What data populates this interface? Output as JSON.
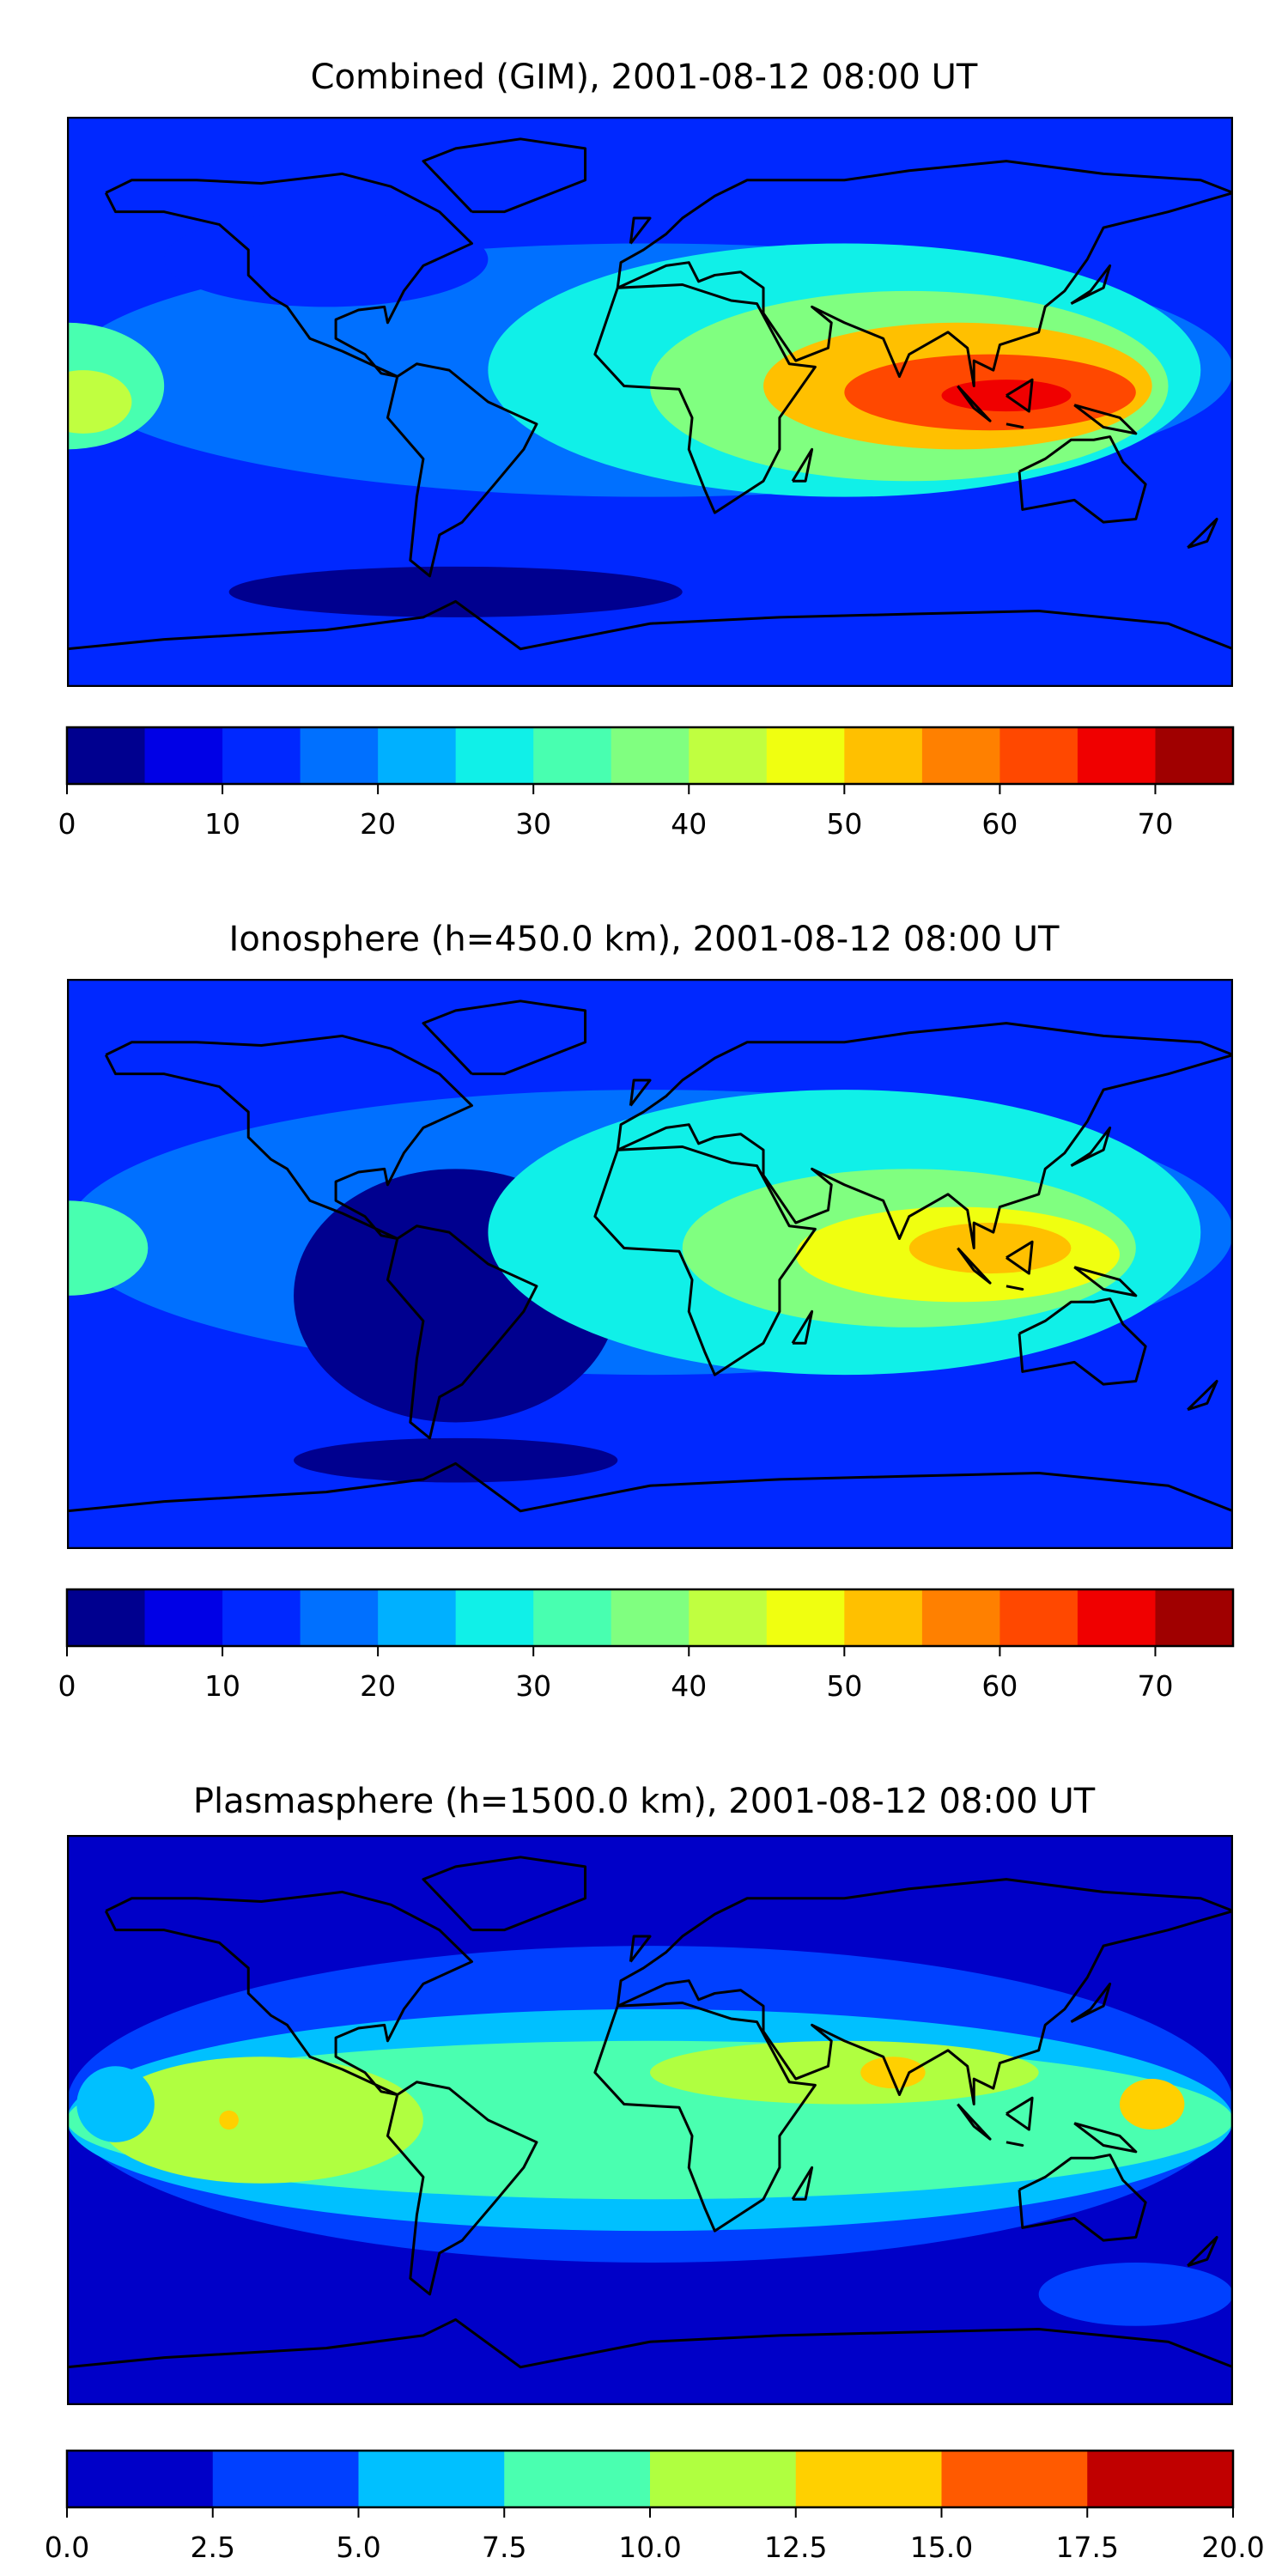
{
  "chart_data": [
    {
      "type": "heatmap",
      "title": "Combined (GIM), 2001-08-12 08:00 UT",
      "xlim": [
        -180,
        180
      ],
      "ylim": [
        -90,
        90
      ],
      "colorbar": {
        "bounds": [
          0,
          5,
          10,
          15,
          20,
          25,
          30,
          35,
          40,
          45,
          50,
          55,
          60,
          65,
          70,
          75
        ],
        "colors": [
          "#00008f",
          "#0000e6",
          "#0028ff",
          "#0070ff",
          "#00b0ff",
          "#10f0e8",
          "#48ffb0",
          "#80ff80",
          "#c0ff40",
          "#f0ff10",
          "#ffc000",
          "#ff8000",
          "#ff4800",
          "#f00000",
          "#a00000"
        ],
        "ticks": [
          0,
          10,
          20,
          30,
          40,
          50,
          60,
          70
        ],
        "tick_labels": [
          "0",
          "10",
          "20",
          "30",
          "40",
          "50",
          "60",
          "70"
        ]
      },
      "background_value": 12,
      "regions": [
        {
          "lon": 0,
          "lat": 10,
          "rx": 180,
          "ry": 40,
          "v": 17
        },
        {
          "lon": -100,
          "lat": 45,
          "rx": 50,
          "ry": 15,
          "v": 12
        },
        {
          "lon": 60,
          "lat": 10,
          "rx": 110,
          "ry": 40,
          "v": 27
        },
        {
          "lon": 80,
          "lat": 5,
          "rx": 80,
          "ry": 30,
          "v": 37
        },
        {
          "lon": 95,
          "lat": 5,
          "rx": 60,
          "ry": 20,
          "v": 52
        },
        {
          "lon": 105,
          "lat": 3,
          "rx": 45,
          "ry": 12,
          "v": 62
        },
        {
          "lon": 110,
          "lat": 2,
          "rx": 20,
          "ry": 5,
          "v": 67
        },
        {
          "lon": -180,
          "lat": 5,
          "rx": 30,
          "ry": 20,
          "v": 32
        },
        {
          "lon": -175,
          "lat": 0,
          "rx": 15,
          "ry": 10,
          "v": 42
        },
        {
          "lon": -60,
          "lat": -60,
          "rx": 70,
          "ry": 8,
          "v": 3
        }
      ]
    },
    {
      "type": "heatmap",
      "title": "Ionosphere  (h=450.0 km), 2001-08-12 08:00 UT",
      "xlim": [
        -180,
        180
      ],
      "ylim": [
        -90,
        90
      ],
      "colorbar": {
        "bounds": [
          0,
          5,
          10,
          15,
          20,
          25,
          30,
          35,
          40,
          45,
          50,
          55,
          60,
          65,
          70,
          75
        ],
        "colors": [
          "#00008f",
          "#0000e6",
          "#0028ff",
          "#0070ff",
          "#00b0ff",
          "#10f0e8",
          "#48ffb0",
          "#80ff80",
          "#c0ff40",
          "#f0ff10",
          "#ffc000",
          "#ff8000",
          "#ff4800",
          "#f00000",
          "#a00000"
        ],
        "ticks": [
          0,
          10,
          20,
          30,
          40,
          50,
          60,
          70
        ],
        "tick_labels": [
          "0",
          "10",
          "20",
          "30",
          "40",
          "50",
          "60",
          "70"
        ]
      },
      "background_value": 12,
      "regions": [
        {
          "lon": 0,
          "lat": 10,
          "rx": 180,
          "ry": 45,
          "v": 17
        },
        {
          "lon": -60,
          "lat": -10,
          "rx": 50,
          "ry": 40,
          "v": 3
        },
        {
          "lon": 60,
          "lat": 10,
          "rx": 110,
          "ry": 45,
          "v": 27
        },
        {
          "lon": 80,
          "lat": 5,
          "rx": 70,
          "ry": 25,
          "v": 37
        },
        {
          "lon": 95,
          "lat": 3,
          "rx": 50,
          "ry": 15,
          "v": 47
        },
        {
          "lon": 105,
          "lat": 5,
          "rx": 25,
          "ry": 8,
          "v": 52
        },
        {
          "lon": -180,
          "lat": 5,
          "rx": 25,
          "ry": 15,
          "v": 32
        },
        {
          "lon": -60,
          "lat": -62,
          "rx": 50,
          "ry": 7,
          "v": 3
        }
      ]
    },
    {
      "type": "heatmap",
      "title": "Plasmasphere (h=1500.0 km), 2001-08-12 08:00 UT",
      "xlim": [
        -180,
        180
      ],
      "ylim": [
        -90,
        90
      ],
      "colorbar": {
        "bounds": [
          0,
          2.5,
          5,
          7.5,
          10,
          12.5,
          15,
          17.5,
          20
        ],
        "colors": [
          "#0000c8",
          "#0040ff",
          "#00c0ff",
          "#4affb0",
          "#b0ff40",
          "#ffd000",
          "#ff5a00",
          "#c00000"
        ],
        "ticks": [
          0,
          2.5,
          5,
          7.5,
          10,
          12.5,
          15,
          17.5,
          20
        ],
        "tick_labels": [
          "0.0",
          "2.5",
          "5.0",
          "7.5",
          "10.0",
          "12.5",
          "15.0",
          "17.5",
          "20.0"
        ]
      },
      "background_value": 1,
      "regions": [
        {
          "lon": 0,
          "lat": 5,
          "rx": 180,
          "ry": 50,
          "v": 4
        },
        {
          "lon": 0,
          "lat": 0,
          "rx": 180,
          "ry": 35,
          "v": 6
        },
        {
          "lon": 0,
          "lat": 0,
          "rx": 180,
          "ry": 25,
          "v": 9
        },
        {
          "lon": -120,
          "lat": 0,
          "rx": 50,
          "ry": 20,
          "v": 11
        },
        {
          "lon": 60,
          "lat": 15,
          "rx": 60,
          "ry": 10,
          "v": 11
        },
        {
          "lon": -165,
          "lat": 5,
          "rx": 12,
          "ry": 12,
          "v": 6
        },
        {
          "lon": 75,
          "lat": 15,
          "rx": 10,
          "ry": 5,
          "v": 14
        },
        {
          "lon": 155,
          "lat": 5,
          "rx": 10,
          "ry": 8,
          "v": 14
        },
        {
          "lon": -130,
          "lat": 0,
          "rx": 3,
          "ry": 3,
          "v": 14
        },
        {
          "lon": 150,
          "lat": -55,
          "rx": 30,
          "ry": 10,
          "v": 4
        }
      ]
    }
  ]
}
